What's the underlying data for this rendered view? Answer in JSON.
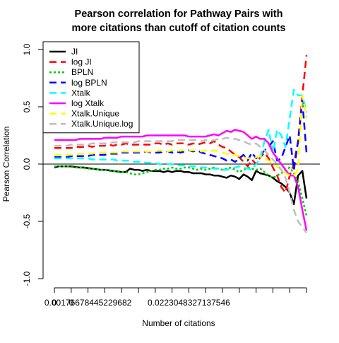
{
  "chart_data": {
    "type": "line",
    "title_line1": "Pearson correlation for Pathway Pairs with",
    "title_line2": "more citations than cutoff of citation counts",
    "xlabel": "Number of citations",
    "ylabel": "Pearson Correlation",
    "ylim": [
      -1.0,
      1.0
    ],
    "yticks": [
      {
        "value": 1.0,
        "label": "1.0"
      },
      {
        "value": 0.5,
        "label": "0.5"
      },
      {
        "value": 0.0,
        "label": "0.0"
      },
      {
        "value": -0.5,
        "label": "-0.5"
      },
      {
        "value": -1.0,
        "label": "-1.0"
      }
    ],
    "x_count": 60,
    "xticks_major": [
      0,
      4,
      8,
      12,
      16,
      20,
      24,
      28,
      32,
      36,
      40,
      44,
      48,
      52,
      56,
      60
    ],
    "xtick_labels": [
      {
        "index": 0,
        "label": "0"
      },
      {
        "index": 4,
        "label": "0"
      },
      {
        "index": 8,
        "label": "0.00176678445229682"
      },
      {
        "index": 32,
        "label": "0.0223048327137546"
      }
    ],
    "zero_line": true,
    "legend_position": "top-left",
    "series": [
      {
        "name": "JI",
        "color": "#000000",
        "dash": "solid",
        "width": 2.5,
        "values": [
          -0.03,
          -0.02,
          -0.02,
          -0.02,
          -0.02,
          -0.025,
          -0.03,
          -0.03,
          -0.035,
          -0.04,
          -0.045,
          -0.05,
          -0.05,
          -0.055,
          -0.06,
          -0.065,
          -0.07,
          -0.07,
          -0.04,
          -0.05,
          -0.05,
          -0.06,
          -0.05,
          -0.06,
          -0.06,
          -0.06,
          -0.07,
          -0.06,
          -0.07,
          -0.06,
          -0.06,
          -0.07,
          -0.07,
          -0.08,
          -0.08,
          -0.08,
          -0.09,
          -0.09,
          -0.1,
          -0.1,
          -0.11,
          -0.12,
          -0.1,
          -0.11,
          -0.13,
          -0.09,
          -0.11,
          -0.14,
          -0.06,
          -0.08,
          -0.09,
          -0.1,
          -0.12,
          -0.15,
          -0.17,
          -0.2,
          -0.25,
          -0.35,
          -0.1,
          -0.06,
          -0.3
        ]
      },
      {
        "name": "log JI",
        "color": "#ff0000",
        "dash": "long",
        "width": 2.5,
        "values": [
          0.14,
          0.14,
          0.14,
          0.14,
          0.14,
          0.15,
          0.15,
          0.15,
          0.16,
          0.15,
          0.16,
          0.16,
          0.16,
          0.17,
          0.16,
          0.17,
          0.17,
          0.18,
          0.17,
          0.17,
          0.17,
          0.17,
          0.17,
          0.17,
          0.18,
          0.18,
          0.17,
          0.18,
          0.17,
          0.18,
          0.18,
          0.18,
          0.17,
          0.18,
          0.17,
          0.18,
          0.19,
          0.18,
          0.2,
          0.17,
          0.15,
          0.14,
          0.11,
          0.08,
          0.06,
          0.02,
          -0.02,
          0.04,
          0.0,
          0.06,
          0.1,
          0.05,
          -0.03,
          -0.1,
          -0.2,
          -0.25,
          -0.1,
          0.0,
          0.2,
          0.6,
          0.95
        ]
      },
      {
        "name": "BPLN",
        "color": "#00cd00",
        "dash": "dotted",
        "width": 2.5,
        "values": [
          -0.02,
          -0.02,
          -0.02,
          -0.02,
          -0.025,
          -0.03,
          -0.03,
          -0.035,
          -0.04,
          -0.04,
          -0.045,
          -0.05,
          -0.05,
          -0.06,
          -0.06,
          -0.07,
          -0.07,
          -0.07,
          -0.08,
          -0.09,
          -0.09,
          -0.08,
          -0.07,
          -0.06,
          -0.05,
          -0.05,
          -0.04,
          -0.04,
          -0.03,
          -0.04,
          -0.04,
          -0.03,
          -0.03,
          -0.04,
          -0.05,
          -0.04,
          -0.05,
          -0.04,
          -0.03,
          -0.04,
          -0.05,
          -0.04,
          -0.03,
          -0.05,
          -0.07,
          -0.05,
          -0.03,
          -0.04,
          -0.05,
          -0.04,
          -0.07,
          -0.1,
          -0.12,
          -0.1,
          -0.08,
          -0.05,
          -0.03,
          -0.08,
          -0.15,
          -0.3,
          -0.45
        ]
      },
      {
        "name": "log BPLN",
        "color": "#0000ff",
        "dash": "long",
        "width": 2.5,
        "values": [
          0.06,
          0.06,
          0.06,
          0.06,
          0.07,
          0.07,
          0.07,
          0.07,
          0.07,
          0.08,
          0.08,
          0.08,
          0.08,
          0.09,
          0.09,
          0.09,
          0.1,
          0.1,
          0.1,
          0.1,
          0.1,
          0.1,
          0.11,
          0.1,
          0.1,
          0.1,
          0.11,
          0.11,
          0.1,
          0.11,
          0.1,
          0.11,
          0.12,
          0.11,
          0.12,
          0.1,
          0.09,
          0.08,
          0.07,
          0.06,
          0.05,
          0.03,
          0.04,
          0.02,
          0.05,
          0.08,
          0.03,
          0.1,
          0.05,
          0.08,
          0.12,
          0.15,
          0.2,
          0.03,
          0.05,
          0.15,
          0.25,
          -0.05,
          0.2,
          0.55,
          0.1
        ]
      },
      {
        "name": "Xtalk",
        "color": "#00ffff",
        "dash": "long",
        "width": 2.5,
        "values": [
          0.05,
          0.05,
          0.05,
          0.05,
          0.05,
          0.05,
          0.05,
          0.05,
          0.05,
          0.04,
          0.04,
          0.04,
          0.04,
          0.04,
          0.04,
          0.03,
          0.03,
          0.03,
          0.03,
          0.02,
          0.02,
          0.02,
          0.01,
          0.01,
          0.01,
          0.0,
          0.0,
          0.0,
          0.0,
          -0.01,
          -0.01,
          -0.01,
          -0.02,
          -0.02,
          -0.02,
          -0.03,
          -0.03,
          -0.03,
          -0.04,
          -0.04,
          -0.05,
          -0.05,
          -0.04,
          -0.03,
          -0.02,
          -0.03,
          -0.04,
          -0.05,
          0.0,
          0.05,
          0.2,
          0.3,
          0.1,
          0.3,
          0.25,
          0.15,
          0.4,
          0.65,
          0.6,
          0.6,
          0.45
        ]
      },
      {
        "name": "log Xtalk",
        "color": "#ff00ff",
        "dash": "solid",
        "width": 2.5,
        "values": [
          0.21,
          0.21,
          0.21,
          0.21,
          0.21,
          0.21,
          0.22,
          0.22,
          0.22,
          0.22,
          0.22,
          0.22,
          0.23,
          0.23,
          0.23,
          0.23,
          0.24,
          0.24,
          0.24,
          0.24,
          0.24,
          0.24,
          0.25,
          0.25,
          0.25,
          0.25,
          0.25,
          0.25,
          0.25,
          0.25,
          0.25,
          0.25,
          0.24,
          0.24,
          0.24,
          0.24,
          0.24,
          0.25,
          0.26,
          0.25,
          0.27,
          0.29,
          0.28,
          0.3,
          0.29,
          0.28,
          0.25,
          0.22,
          0.24,
          0.22,
          0.22,
          0.18,
          0.1,
          0.05,
          0.0,
          -0.05,
          -0.1,
          -0.1,
          -0.2,
          -0.4,
          -0.58
        ]
      },
      {
        "name": "Xtalk.Unique",
        "color": "#ffff00",
        "dash": "long",
        "width": 2.5,
        "values": [
          0.08,
          0.08,
          0.08,
          0.08,
          0.08,
          0.09,
          0.09,
          0.09,
          0.09,
          0.09,
          0.1,
          0.1,
          0.1,
          0.1,
          0.1,
          0.1,
          0.11,
          0.11,
          0.11,
          0.11,
          0.11,
          0.11,
          0.11,
          0.11,
          0.11,
          0.12,
          0.11,
          0.11,
          0.12,
          0.11,
          0.12,
          0.12,
          0.12,
          0.12,
          0.12,
          0.11,
          0.12,
          0.11,
          0.12,
          0.11,
          0.1,
          0.09,
          0.08,
          0.08,
          0.07,
          0.06,
          0.05,
          0.05,
          0.06,
          0.07,
          0.05,
          0.03,
          0.0,
          -0.02,
          -0.05,
          -0.08,
          -0.1,
          -0.1,
          -0.05,
          0.6,
          0.4
        ]
      },
      {
        "name": "Xtalk.Unique.log",
        "color": "#bebebe",
        "dash": "long",
        "width": 2.5,
        "values": [
          0.16,
          0.16,
          0.16,
          0.16,
          0.17,
          0.17,
          0.17,
          0.17,
          0.17,
          0.18,
          0.18,
          0.18,
          0.18,
          0.18,
          0.19,
          0.19,
          0.19,
          0.19,
          0.19,
          0.19,
          0.2,
          0.2,
          0.2,
          0.2,
          0.2,
          0.2,
          0.2,
          0.2,
          0.2,
          0.21,
          0.21,
          0.21,
          0.21,
          0.21,
          0.21,
          0.2,
          0.21,
          0.2,
          0.21,
          0.22,
          0.22,
          0.23,
          0.22,
          0.22,
          0.21,
          0.2,
          0.18,
          0.17,
          0.18,
          0.15,
          0.12,
          0.08,
          0.04,
          0.0,
          -0.05,
          -0.12,
          -0.25,
          -0.4,
          -0.5,
          -0.55,
          -0.6
        ]
      }
    ]
  }
}
